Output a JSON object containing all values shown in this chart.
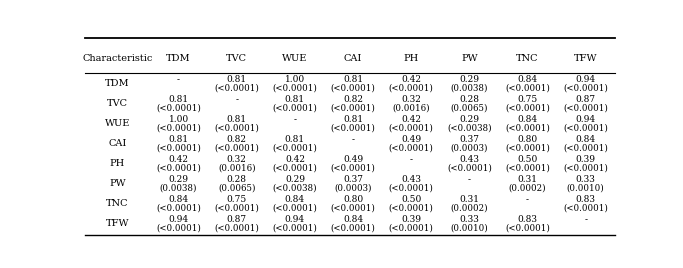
{
  "headers": [
    "Characteristic",
    "TDM",
    "TVC",
    "WUE",
    "CAI",
    "PH",
    "PW",
    "TNC",
    "TFW"
  ],
  "rows": [
    {
      "label": "TDM",
      "values": [
        [
          "-",
          ""
        ],
        [
          "0.81",
          "(<0.0001)"
        ],
        [
          "1.00",
          "(<0.0001)"
        ],
        [
          "0.81",
          "(<0.0001)"
        ],
        [
          "0.42",
          "(<0.0001)"
        ],
        [
          "0.29",
          "(0.0038)"
        ],
        [
          "0.84",
          "(<0.0001)"
        ],
        [
          "0.94",
          "(<0.0001)"
        ]
      ]
    },
    {
      "label": "TVC",
      "values": [
        [
          "0.81",
          "(<0.0001)"
        ],
        [
          "-",
          ""
        ],
        [
          "0.81",
          "(<0.0001)"
        ],
        [
          "0.82",
          "(<0.0001)"
        ],
        [
          "0.32",
          "(0.0016)"
        ],
        [
          "0.28",
          "(0.0065)"
        ],
        [
          "0.75",
          "(<0.0001)"
        ],
        [
          "0.87",
          "(<0.0001)"
        ]
      ]
    },
    {
      "label": "WUE",
      "values": [
        [
          "1.00",
          "(<0.0001)"
        ],
        [
          "0.81",
          "(<0.0001)"
        ],
        [
          "-",
          ""
        ],
        [
          "0.81",
          "(<0.0001)"
        ],
        [
          "0.42",
          "(<0.0001)"
        ],
        [
          "0.29",
          "(<0.0038)"
        ],
        [
          "0.84",
          "(<0.0001)"
        ],
        [
          "0.94",
          "(<0.0001)"
        ]
      ]
    },
    {
      "label": "CAI",
      "values": [
        [
          "0.81",
          "(<0.0001)"
        ],
        [
          "0.82",
          "(<0.0001)"
        ],
        [
          "0.81",
          "(<0.0001)"
        ],
        [
          "-",
          ""
        ],
        [
          "0.49",
          "(<0.0001)"
        ],
        [
          "0.37",
          "(0.0003)"
        ],
        [
          "0.80",
          "(<0.0001)"
        ],
        [
          "0.84",
          "(<0.0001)"
        ]
      ]
    },
    {
      "label": "PH",
      "values": [
        [
          "0.42",
          "(<0.0001)"
        ],
        [
          "0.32",
          "(0.0016)"
        ],
        [
          "0.42",
          "(<0.0001)"
        ],
        [
          "0.49",
          "(<0.0001)"
        ],
        [
          "-",
          ""
        ],
        [
          "0.43",
          "(<0.0001)"
        ],
        [
          "0.50",
          "(<0.0001)"
        ],
        [
          "0.39",
          "(<0.0001)"
        ]
      ]
    },
    {
      "label": "PW",
      "values": [
        [
          "0.29",
          "(0.0038)"
        ],
        [
          "0.28",
          "(0.0065)"
        ],
        [
          "0.29",
          "(<0.0038)"
        ],
        [
          "0.37",
          "(0.0003)"
        ],
        [
          "0.43",
          "(<0.0001)"
        ],
        [
          "-",
          ""
        ],
        [
          "0.31",
          "(0.0002)"
        ],
        [
          "0.33",
          "(0.0010)"
        ]
      ]
    },
    {
      "label": "TNC",
      "values": [
        [
          "0.84",
          "(<0.0001)"
        ],
        [
          "0.75",
          "(<0.0001)"
        ],
        [
          "0.84",
          "(<0.0001)"
        ],
        [
          "0.80",
          "(<0.0001)"
        ],
        [
          "0.50",
          "(<0.0001)"
        ],
        [
          "0.31",
          "(0.0002)"
        ],
        [
          "-",
          ""
        ],
        [
          "0.83",
          "(<0.0001)"
        ]
      ]
    },
    {
      "label": "TFW",
      "values": [
        [
          "0.94",
          "(<0.0001)"
        ],
        [
          "0.87",
          "(<0.0001)"
        ],
        [
          "0.94",
          "(<0.0001)"
        ],
        [
          "0.84",
          "(<0.0001)"
        ],
        [
          "0.39",
          "(<0.0001)"
        ],
        [
          "0.33",
          "(0.0010)"
        ],
        [
          "0.83",
          "(<0.0001)"
        ],
        [
          "-",
          ""
        ]
      ]
    }
  ],
  "figsize": [
    6.83,
    2.68
  ],
  "dpi": 100,
  "bg_color": "#ffffff",
  "line_color": "#000000",
  "text_color": "#000000",
  "font_size": 6.5,
  "header_font_size": 7.0,
  "label_font_size": 7.0
}
